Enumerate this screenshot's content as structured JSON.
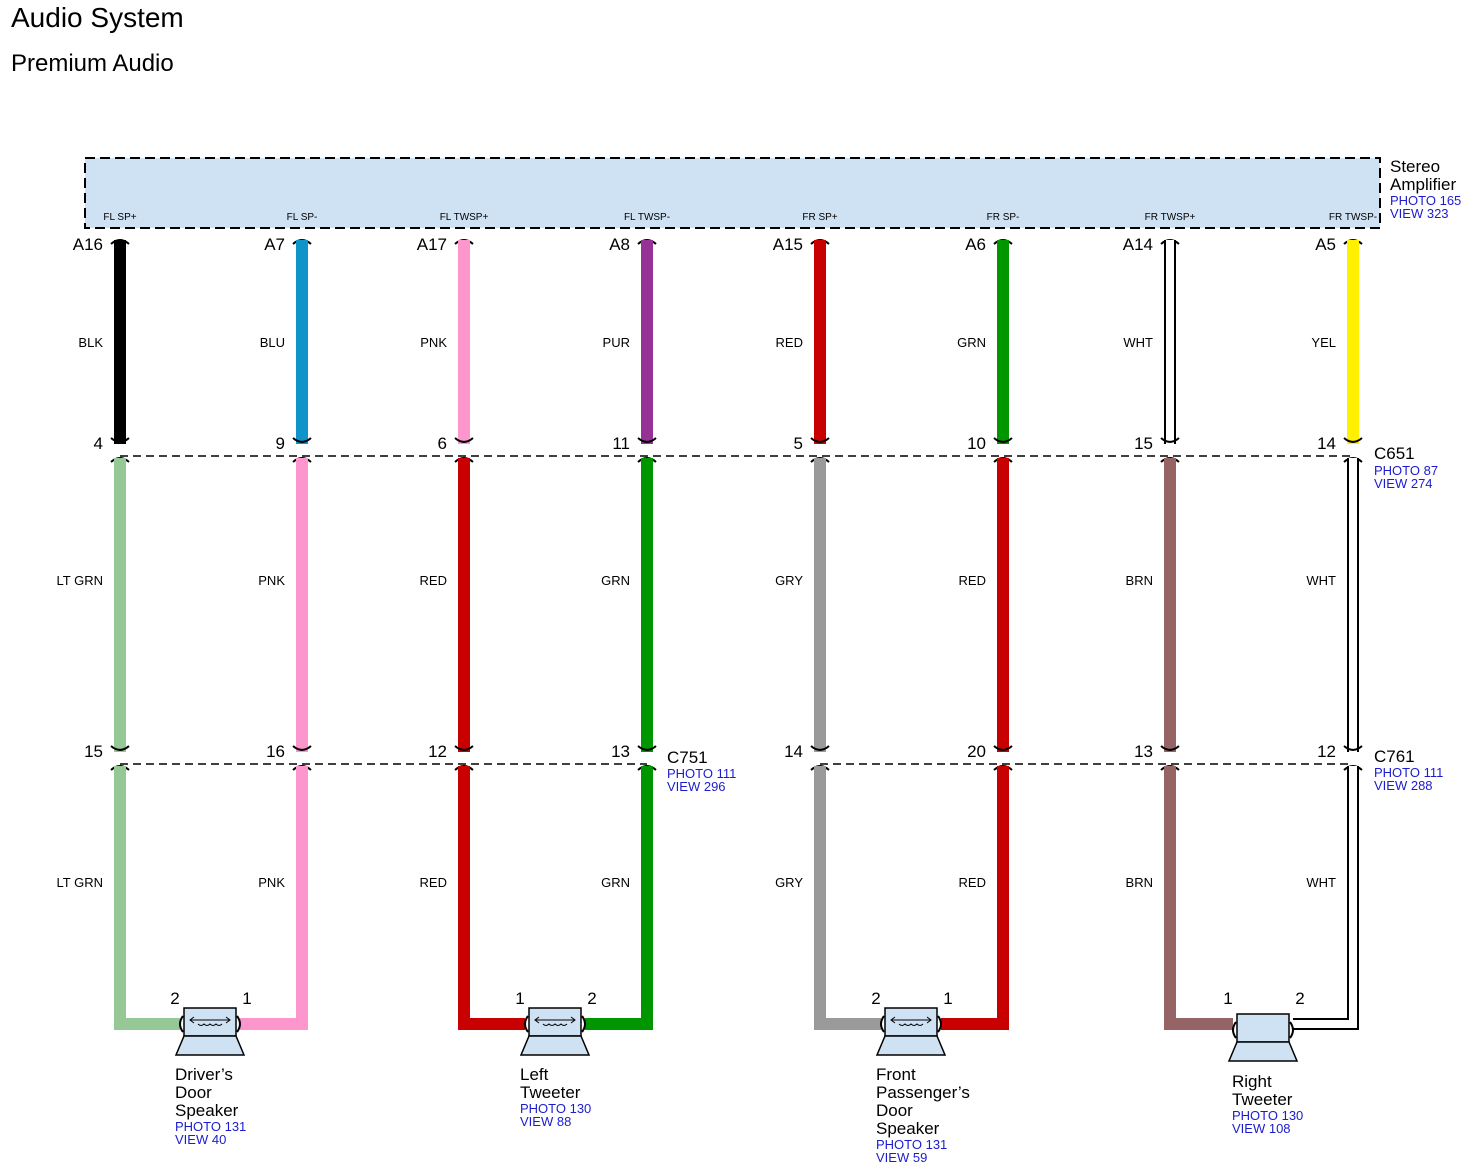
{
  "header": {
    "title": "Audio System",
    "subtitle": "Premium Audio"
  },
  "amplifier": {
    "name_line1": "Stereo",
    "name_line2": "Amplifier",
    "photo": "PHOTO 165",
    "view": "VIEW 323"
  },
  "connectors": {
    "c651": {
      "name": "C651",
      "photo": "PHOTO 87",
      "view": "VIEW 274"
    },
    "c751": {
      "name": "C751",
      "photo": "PHOTO 111",
      "view": "VIEW 296"
    },
    "c761": {
      "name": "C761",
      "photo": "PHOTO 111",
      "view": "VIEW 288"
    }
  },
  "circuits": [
    {
      "signal": "FL SP+",
      "amp_pin": "A16",
      "color_top": "BLK",
      "c651_pin": "4",
      "color_mid": "LT GRN",
      "c7_pin": "15",
      "color_bot": "LT GRN",
      "spk_pin": "2"
    },
    {
      "signal": "FL SP-",
      "amp_pin": "A7",
      "color_top": "BLU",
      "c651_pin": "9",
      "color_mid": "PNK",
      "c7_pin": "16",
      "color_bot": "PNK",
      "spk_pin": "1"
    },
    {
      "signal": "FL TWSP+",
      "amp_pin": "A17",
      "color_top": "PNK",
      "c651_pin": "6",
      "color_mid": "RED",
      "c7_pin": "12",
      "color_bot": "RED",
      "spk_pin": "1"
    },
    {
      "signal": "FL TWSP-",
      "amp_pin": "A8",
      "color_top": "PUR",
      "c651_pin": "11",
      "color_mid": "GRN",
      "c7_pin": "13",
      "color_bot": "GRN",
      "spk_pin": "2"
    },
    {
      "signal": "FR SP+",
      "amp_pin": "A15",
      "color_top": "RED",
      "c651_pin": "5",
      "color_mid": "GRY",
      "c7_pin": "14",
      "color_bot": "GRY",
      "spk_pin": "2"
    },
    {
      "signal": "FR SP-",
      "amp_pin": "A6",
      "color_top": "GRN",
      "c651_pin": "10",
      "color_mid": "RED",
      "c7_pin": "20",
      "color_bot": "RED",
      "spk_pin": "1"
    },
    {
      "signal": "FR TWSP+",
      "amp_pin": "A14",
      "color_top": "WHT",
      "c651_pin": "15",
      "color_mid": "BRN",
      "c7_pin": "13",
      "color_bot": "BRN",
      "spk_pin": "1"
    },
    {
      "signal": "FR TWSP-",
      "amp_pin": "A5",
      "color_top": "YEL",
      "c651_pin": "14",
      "color_mid": "WHT",
      "c7_pin": "12",
      "color_bot": "WHT",
      "spk_pin": "2"
    }
  ],
  "speakers": [
    {
      "lines": [
        "Driver’s",
        "Door",
        "Speaker"
      ],
      "photo": "PHOTO 131",
      "view": "VIEW 40"
    },
    {
      "lines": [
        "Left",
        "Tweeter"
      ],
      "photo": "PHOTO 130",
      "view": "VIEW 88"
    },
    {
      "lines": [
        "Front",
        "Passenger’s",
        "Door",
        "Speaker"
      ],
      "photo": "PHOTO 131",
      "view": "VIEW 59"
    },
    {
      "lines": [
        "Right",
        "Tweeter"
      ],
      "photo": "PHOTO 130",
      "view": "VIEW 108"
    }
  ],
  "wire_colors": {
    "BLK": "#000000",
    "BLU": "#0e94c8",
    "PNK": "#fc96cc",
    "PUR": "#963296",
    "RED": "#c80000",
    "GRN": "#009600",
    "WHT": "#ffffff",
    "YEL": "#fff000",
    "LT GRN": "#96c896",
    "GRY": "#9a9a9a",
    "BRN": "#966464"
  },
  "module_fill": "#cfe2f3"
}
